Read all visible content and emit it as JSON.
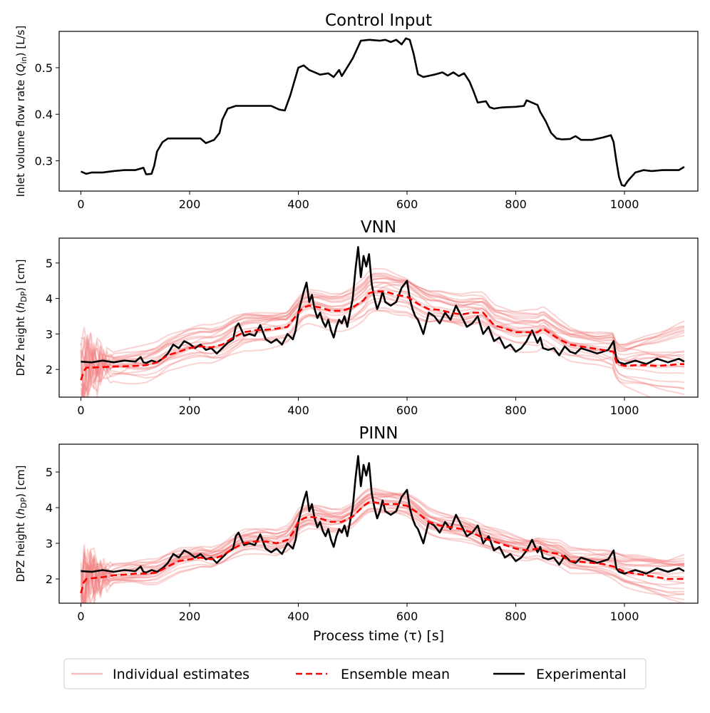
{
  "chart_data": [
    {
      "type": "line",
      "title": "Control Input",
      "ylabel": "Inlet volume flow rate (Q_in) [L/s]",
      "ylabel_parts": {
        "pre": "Inlet volume flow rate (",
        "sym": "Q",
        "sub": "in",
        "post": ") [L/s]"
      },
      "xlim": [
        -40,
        1135
      ],
      "ylim": [
        0.235,
        0.578
      ],
      "xticks": [
        0,
        200,
        400,
        600,
        800,
        1000
      ],
      "yticks": [
        0.3,
        0.4,
        0.5
      ],
      "grid": false,
      "series": [
        {
          "name": "Experimental",
          "color": "#000000",
          "x": [
            0,
            10,
            20,
            40,
            60,
            80,
            100,
            115,
            120,
            130,
            135,
            140,
            150,
            160,
            175,
            200,
            220,
            230,
            245,
            255,
            260,
            270,
            285,
            300,
            320,
            340,
            350,
            365,
            375,
            385,
            395,
            400,
            410,
            420,
            440,
            455,
            465,
            475,
            480,
            500,
            515,
            530,
            550,
            560,
            570,
            580,
            590,
            598,
            605,
            612,
            620,
            630,
            650,
            665,
            675,
            685,
            695,
            705,
            715,
            722,
            730,
            745,
            752,
            760,
            770,
            780,
            800,
            815,
            820,
            830,
            840,
            845,
            855,
            865,
            875,
            885,
            900,
            910,
            920,
            940,
            960,
            975,
            980,
            985,
            990,
            995,
            1000,
            1005,
            1010,
            1020,
            1035,
            1050,
            1070,
            1090,
            1100,
            1110
          ],
          "values": [
            0.277,
            0.272,
            0.275,
            0.275,
            0.278,
            0.28,
            0.28,
            0.285,
            0.271,
            0.272,
            0.29,
            0.32,
            0.34,
            0.348,
            0.348,
            0.348,
            0.348,
            0.338,
            0.345,
            0.36,
            0.388,
            0.412,
            0.418,
            0.418,
            0.418,
            0.418,
            0.418,
            0.41,
            0.408,
            0.44,
            0.48,
            0.5,
            0.505,
            0.495,
            0.485,
            0.488,
            0.48,
            0.495,
            0.482,
            0.52,
            0.558,
            0.56,
            0.558,
            0.56,
            0.555,
            0.56,
            0.55,
            0.563,
            0.56,
            0.53,
            0.486,
            0.48,
            0.485,
            0.49,
            0.483,
            0.49,
            0.482,
            0.488,
            0.47,
            0.45,
            0.425,
            0.428,
            0.415,
            0.412,
            0.414,
            0.415,
            0.416,
            0.418,
            0.43,
            0.425,
            0.42,
            0.405,
            0.385,
            0.36,
            0.348,
            0.346,
            0.347,
            0.353,
            0.345,
            0.345,
            0.35,
            0.355,
            0.34,
            0.3,
            0.265,
            0.248,
            0.246,
            0.255,
            0.262,
            0.275,
            0.28,
            0.278,
            0.28,
            0.28,
            0.28,
            0.287
          ]
        }
      ]
    },
    {
      "type": "line",
      "title": "VNN",
      "ylabel": "DPZ height (h_DP) [cm]",
      "ylabel_parts": {
        "pre": "DPZ height (",
        "sym": "h",
        "sub": "DP",
        "post": ") [cm]"
      },
      "xlim": [
        -40,
        1135
      ],
      "ylim": [
        1.22,
        5.7
      ],
      "xticks": [
        0,
        200,
        400,
        600,
        800,
        1000
      ],
      "yticks": [
        2,
        3,
        4,
        5
      ],
      "grid": false,
      "series": [
        {
          "name": "Experimental",
          "color": "#000000",
          "x": [
            0,
            20,
            40,
            60,
            80,
            100,
            110,
            115,
            120,
            130,
            140,
            150,
            160,
            170,
            180,
            190,
            200,
            210,
            220,
            230,
            240,
            250,
            260,
            270,
            280,
            285,
            290,
            300,
            310,
            320,
            330,
            340,
            350,
            360,
            370,
            380,
            390,
            395,
            400,
            405,
            410,
            415,
            420,
            425,
            430,
            435,
            440,
            445,
            450,
            455,
            460,
            465,
            470,
            475,
            480,
            485,
            490,
            495,
            500,
            505,
            510,
            515,
            520,
            525,
            530,
            535,
            540,
            545,
            550,
            555,
            560,
            570,
            580,
            590,
            600,
            605,
            610,
            615,
            620,
            625,
            630,
            640,
            650,
            660,
            670,
            680,
            690,
            700,
            710,
            720,
            730,
            740,
            750,
            760,
            770,
            780,
            790,
            800,
            810,
            820,
            830,
            840,
            845,
            850,
            860,
            870,
            880,
            890,
            900,
            910,
            920,
            930,
            940,
            950,
            960,
            970,
            980,
            985,
            990,
            1000,
            1020,
            1040,
            1060,
            1080,
            1100,
            1110
          ],
          "values": [
            2.22,
            2.2,
            2.25,
            2.2,
            2.25,
            2.22,
            2.35,
            2.2,
            2.18,
            2.25,
            2.2,
            2.3,
            2.45,
            2.7,
            2.6,
            2.8,
            2.72,
            2.6,
            2.7,
            2.55,
            2.6,
            2.45,
            2.6,
            2.75,
            2.85,
            3.2,
            3.3,
            2.95,
            3.0,
            2.95,
            3.25,
            2.85,
            2.75,
            2.85,
            2.7,
            3.0,
            2.85,
            3.1,
            3.6,
            3.9,
            4.2,
            4.45,
            3.9,
            4.1,
            3.7,
            3.45,
            3.6,
            3.35,
            3.2,
            3.4,
            3.1,
            2.9,
            3.2,
            3.4,
            3.3,
            3.5,
            3.2,
            3.6,
            4.0,
            4.8,
            5.45,
            4.6,
            5.2,
            4.9,
            5.25,
            4.4,
            4.0,
            3.7,
            3.9,
            4.2,
            3.9,
            3.8,
            3.9,
            4.3,
            4.5,
            4.0,
            3.7,
            3.5,
            3.4,
            3.2,
            3.0,
            3.6,
            3.5,
            3.3,
            3.6,
            3.4,
            3.8,
            3.5,
            3.2,
            3.3,
            3.5,
            3.0,
            3.2,
            2.8,
            2.9,
            2.6,
            2.7,
            2.5,
            2.6,
            2.8,
            3.1,
            2.75,
            2.9,
            2.6,
            2.55,
            2.6,
            2.4,
            2.65,
            2.5,
            2.45,
            2.6,
            2.55,
            2.5,
            2.45,
            2.5,
            2.55,
            2.8,
            2.3,
            2.2,
            2.15,
            2.25,
            2.15,
            2.3,
            2.2,
            2.3,
            2.22
          ]
        },
        {
          "name": "Ensemble mean",
          "color": "#ff0000",
          "x": [
            0,
            5,
            10,
            30,
            60,
            100,
            120,
            140,
            160,
            180,
            200,
            220,
            240,
            260,
            280,
            300,
            320,
            340,
            360,
            380,
            390,
            400,
            410,
            420,
            440,
            460,
            480,
            500,
            510,
            520,
            530,
            540,
            560,
            580,
            600,
            610,
            620,
            640,
            660,
            680,
            700,
            720,
            740,
            760,
            780,
            800,
            820,
            840,
            850,
            860,
            880,
            900,
            920,
            940,
            960,
            980,
            985,
            990,
            1000,
            1020,
            1040,
            1060,
            1080,
            1100,
            1110
          ],
          "values": [
            1.7,
            1.95,
            2.05,
            2.06,
            2.08,
            2.1,
            2.12,
            2.2,
            2.4,
            2.5,
            2.6,
            2.65,
            2.62,
            2.7,
            2.9,
            3.05,
            3.1,
            3.12,
            3.15,
            3.2,
            3.4,
            3.6,
            3.75,
            3.8,
            3.75,
            3.65,
            3.65,
            3.75,
            3.85,
            3.95,
            4.15,
            4.2,
            4.2,
            4.1,
            4.05,
            3.95,
            3.85,
            3.7,
            3.68,
            3.6,
            3.55,
            3.6,
            3.6,
            3.25,
            3.15,
            3.05,
            3.05,
            3.05,
            3.15,
            3.05,
            2.85,
            2.7,
            2.65,
            2.6,
            2.55,
            2.5,
            2.2,
            2.15,
            2.1,
            2.12,
            2.12,
            2.1,
            2.12,
            2.15,
            2.15
          ]
        }
      ],
      "legend": [
        {
          "label": "Individual estimates",
          "color": "#f4b4b4",
          "style": "solid"
        },
        {
          "label": "Ensemble mean",
          "color": "#ff0000",
          "style": "dashed"
        },
        {
          "label": "Experimental",
          "color": "#000000",
          "style": "solid"
        }
      ],
      "legend_location": "bottom-center"
    },
    {
      "type": "line",
      "title": "PINN",
      "xlabel": "Process time (τ) [s]",
      "ylabel": "DPZ height (h_DP) [cm]",
      "ylabel_parts": {
        "pre": "DPZ height (",
        "sym": "h",
        "sub": "DP",
        "post": ") [cm]"
      },
      "xlim": [
        -40,
        1135
      ],
      "ylim": [
        1.32,
        5.78
      ],
      "xticks": [
        0,
        200,
        400,
        600,
        800,
        1000
      ],
      "yticks": [
        2,
        3,
        4,
        5
      ],
      "grid": false,
      "series": [
        {
          "name": "Experimental",
          "color": "#000000",
          "x": [
            0,
            20,
            40,
            60,
            80,
            100,
            110,
            115,
            120,
            130,
            140,
            150,
            160,
            170,
            180,
            190,
            200,
            210,
            220,
            230,
            240,
            250,
            260,
            270,
            280,
            285,
            290,
            300,
            310,
            320,
            330,
            340,
            350,
            360,
            370,
            380,
            390,
            395,
            400,
            405,
            410,
            415,
            420,
            425,
            430,
            435,
            440,
            445,
            450,
            455,
            460,
            465,
            470,
            475,
            480,
            485,
            490,
            495,
            500,
            505,
            510,
            515,
            520,
            525,
            530,
            535,
            540,
            545,
            550,
            555,
            560,
            570,
            580,
            590,
            600,
            605,
            610,
            615,
            620,
            625,
            630,
            640,
            650,
            660,
            670,
            680,
            690,
            700,
            710,
            720,
            730,
            740,
            750,
            760,
            770,
            780,
            790,
            800,
            810,
            820,
            830,
            840,
            845,
            850,
            860,
            870,
            880,
            890,
            900,
            910,
            920,
            930,
            940,
            950,
            960,
            970,
            980,
            985,
            990,
            1000,
            1020,
            1040,
            1060,
            1080,
            1100,
            1110
          ],
          "values": [
            2.22,
            2.2,
            2.25,
            2.2,
            2.25,
            2.22,
            2.35,
            2.2,
            2.18,
            2.25,
            2.2,
            2.3,
            2.45,
            2.7,
            2.6,
            2.8,
            2.72,
            2.6,
            2.7,
            2.55,
            2.6,
            2.45,
            2.6,
            2.75,
            2.85,
            3.2,
            3.3,
            2.95,
            3.0,
            2.95,
            3.25,
            2.85,
            2.75,
            2.85,
            2.7,
            3.0,
            2.85,
            3.1,
            3.6,
            3.9,
            4.2,
            4.45,
            3.9,
            4.1,
            3.7,
            3.45,
            3.6,
            3.35,
            3.2,
            3.4,
            3.1,
            2.9,
            3.2,
            3.4,
            3.3,
            3.5,
            3.2,
            3.6,
            4.0,
            4.8,
            5.45,
            4.6,
            5.2,
            4.9,
            5.25,
            4.4,
            4.0,
            3.7,
            3.9,
            4.2,
            3.9,
            3.8,
            3.9,
            4.3,
            4.5,
            4.0,
            3.7,
            3.5,
            3.4,
            3.2,
            3.0,
            3.6,
            3.5,
            3.3,
            3.6,
            3.4,
            3.8,
            3.5,
            3.2,
            3.3,
            3.5,
            3.0,
            3.2,
            2.8,
            2.9,
            2.6,
            2.7,
            2.5,
            2.6,
            2.8,
            3.1,
            2.75,
            2.9,
            2.6,
            2.55,
            2.6,
            2.4,
            2.65,
            2.5,
            2.45,
            2.6,
            2.55,
            2.5,
            2.45,
            2.5,
            2.55,
            2.8,
            2.3,
            2.2,
            2.15,
            2.25,
            2.15,
            2.3,
            2.2,
            2.3,
            2.22
          ]
        },
        {
          "name": "Ensemble mean",
          "color": "#ff0000",
          "x": [
            0,
            5,
            10,
            20,
            40,
            60,
            80,
            100,
            120,
            140,
            160,
            180,
            200,
            220,
            240,
            260,
            280,
            300,
            320,
            340,
            360,
            380,
            390,
            400,
            410,
            420,
            440,
            460,
            480,
            500,
            510,
            520,
            530,
            540,
            560,
            580,
            600,
            620,
            640,
            660,
            680,
            700,
            720,
            740,
            760,
            780,
            800,
            820,
            840,
            860,
            880,
            900,
            920,
            940,
            960,
            980,
            1000,
            1020,
            1040,
            1060,
            1080,
            1100,
            1110
          ],
          "values": [
            1.6,
            1.9,
            2.0,
            2.02,
            2.05,
            2.1,
            2.12,
            2.15,
            2.15,
            2.18,
            2.35,
            2.5,
            2.55,
            2.6,
            2.55,
            2.65,
            2.85,
            3.0,
            3.05,
            3.05,
            3.0,
            3.1,
            3.3,
            3.6,
            3.7,
            3.75,
            3.7,
            3.6,
            3.6,
            3.75,
            3.9,
            4.05,
            4.15,
            4.15,
            4.1,
            4.1,
            4.05,
            3.85,
            3.6,
            3.5,
            3.45,
            3.4,
            3.3,
            3.15,
            3.05,
            2.95,
            2.85,
            2.8,
            2.85,
            2.75,
            2.7,
            2.5,
            2.48,
            2.45,
            2.42,
            2.35,
            2.2,
            2.15,
            2.1,
            2.05,
            2.0,
            2.0,
            2.0
          ]
        }
      ]
    }
  ]
}
